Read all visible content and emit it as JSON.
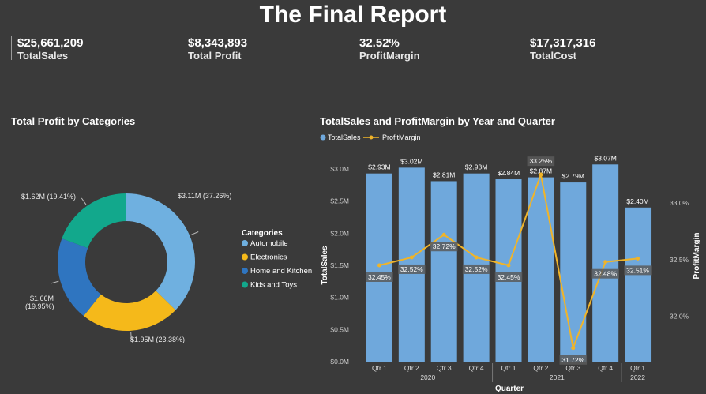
{
  "report": {
    "title": "The Final Report"
  },
  "kpis": [
    {
      "value": "$25,661,209",
      "label": "TotalSales"
    },
    {
      "value": "$8,343,893",
      "label": "Total Profit"
    },
    {
      "value": "32.52%",
      "label": "ProfitMargin"
    },
    {
      "value": "$17,317,316",
      "label": "TotalCost"
    }
  ],
  "colors": {
    "background": "#3a3a3a",
    "bar": "#6fa8dc",
    "line": "#f0b429",
    "automobile": "#6fb0e0",
    "electronics": "#f5b91a",
    "home_kitchen": "#2f75c0",
    "kids_toys": "#12a88c"
  },
  "chart_data": [
    {
      "type": "pie",
      "title": "Total Profit by Categories",
      "legend_title": "Categories",
      "legend_placement": "right",
      "categories": [
        "Automobile",
        "Electronics",
        "Home and Kitchen",
        "Kids and Toys"
      ],
      "values": [
        3.11,
        1.95,
        1.66,
        1.62
      ],
      "percents": [
        37.26,
        23.38,
        19.95,
        19.41
      ],
      "data_labels": [
        "$3.11M (37.26%)",
        "$1.95M (23.38%)",
        "$1.66M (19.95%)",
        "$1.62M (19.41%)"
      ]
    },
    {
      "type": "bar",
      "title": "TotalSales and ProfitMargin by Year and Quarter",
      "legend_placement": "top-left",
      "xlabel": "Quarter",
      "ylabel": "TotalSales",
      "y2label": "ProfitMargin",
      "categories": [
        "Qtr 1",
        "Qtr 2",
        "Qtr 3",
        "Qtr 4",
        "Qtr 1",
        "Qtr 2",
        "Qtr 3",
        "Qtr 4",
        "Qtr 1"
      ],
      "years": [
        {
          "label": "2020",
          "count": 4
        },
        {
          "label": "2021",
          "count": 4
        },
        {
          "label": "2022",
          "count": 1
        }
      ],
      "ylim": [
        0,
        3.0
      ],
      "yticks": [
        "$0.0M",
        "$0.5M",
        "$1.0M",
        "$1.5M",
        "$2.0M",
        "$2.5M",
        "$3.0M"
      ],
      "y2lim": [
        31.6,
        33.3
      ],
      "y2ticks": [
        "32.0%",
        "32.5%",
        "33.0%"
      ],
      "y2tick_values": [
        32.0,
        32.5,
        33.0
      ],
      "series": [
        {
          "name": "TotalSales",
          "kind": "bar",
          "values": [
            2.93,
            3.02,
            2.81,
            2.93,
            2.84,
            2.87,
            2.79,
            3.07,
            2.4
          ],
          "labels": [
            "$2.93M",
            "$3.02M",
            "$2.81M",
            "$2.93M",
            "$2.84M",
            "$2.87M",
            "$2.79M",
            "$3.07M",
            "$2.40M"
          ]
        },
        {
          "name": "ProfitMargin",
          "kind": "line",
          "values": [
            32.45,
            32.52,
            32.72,
            32.52,
            32.45,
            33.25,
            31.72,
            32.48,
            32.51
          ],
          "labels": [
            "32.45%",
            "32.52%",
            "32.72%",
            "32.52%",
            "32.45%",
            "33.25%",
            "31.72%",
            "32.48%",
            "32.51%"
          ]
        }
      ]
    }
  ]
}
